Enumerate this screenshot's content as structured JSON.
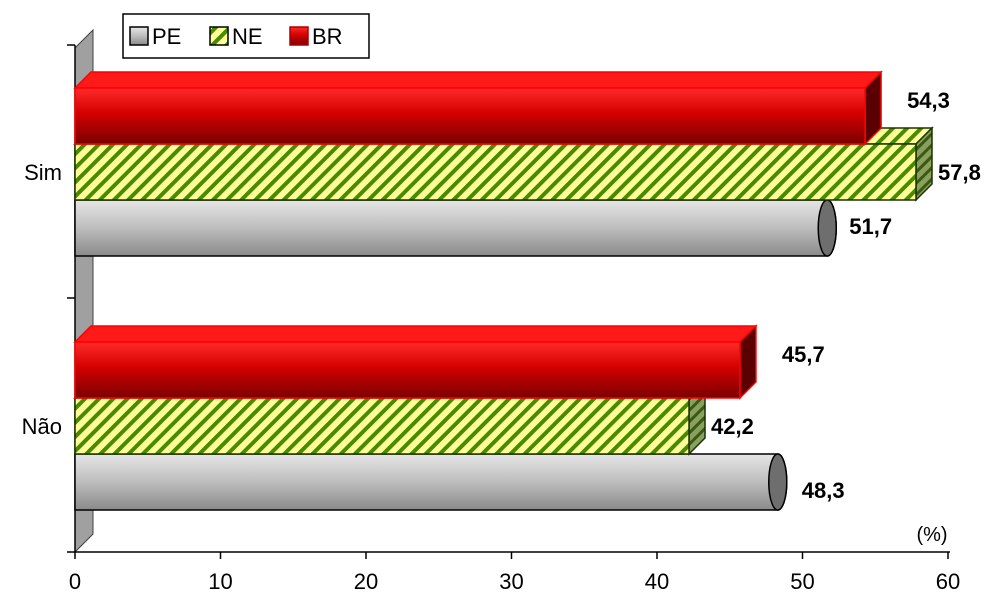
{
  "chart_data": {
    "type": "bar",
    "orientation": "horizontal",
    "categories": [
      "Sim",
      "Não"
    ],
    "series": [
      {
        "name": "PE",
        "values": [
          51.7,
          48.3
        ],
        "color": "#b0b0b0",
        "value_labels": [
          "51,7",
          "48,3"
        ]
      },
      {
        "name": "NE",
        "values": [
          57.8,
          42.2
        ],
        "color": "#ccff33",
        "value_labels": [
          "57,8",
          "42,2"
        ]
      },
      {
        "name": "BR",
        "values": [
          54.3,
          45.7
        ],
        "color": "#e00000",
        "value_labels": [
          "54,3",
          "45,7"
        ]
      }
    ],
    "xlim": [
      0,
      60
    ],
    "xticks": [
      0,
      10,
      20,
      30,
      40,
      50,
      60
    ],
    "x_unit_label": "(%)",
    "legend_position": "top-left",
    "grid": false
  }
}
